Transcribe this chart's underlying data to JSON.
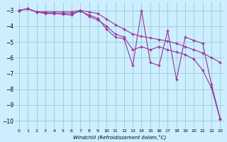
{
  "xlabel": "Windchill (Refroidissement éolien,°C)",
  "bg_color": "#cceeff",
  "line_color": "#993399",
  "grid_color": "#99cccc",
  "xlim": [
    -0.5,
    23.5
  ],
  "ylim": [
    -10.5,
    -2.5
  ],
  "yticks": [
    -10,
    -9,
    -8,
    -7,
    -6,
    -5,
    -4,
    -3
  ],
  "xticks": [
    0,
    1,
    2,
    3,
    4,
    5,
    6,
    7,
    8,
    9,
    10,
    11,
    12,
    13,
    14,
    15,
    16,
    17,
    18,
    19,
    20,
    21,
    22,
    23
  ],
  "line1_x": [
    0,
    1,
    2,
    3,
    4,
    5,
    6,
    7,
    8,
    9,
    10,
    11,
    12,
    13,
    14,
    15,
    16,
    17,
    18,
    19,
    20,
    21,
    22,
    23
  ],
  "line1_y": [
    -3.0,
    -2.9,
    -3.1,
    -3.1,
    -3.1,
    -3.1,
    -3.1,
    -3.0,
    -3.1,
    -3.2,
    -3.55,
    -3.9,
    -4.2,
    -4.5,
    -4.65,
    -4.75,
    -4.85,
    -4.95,
    -5.1,
    -5.3,
    -5.5,
    -5.7,
    -6.0,
    -6.3
  ],
  "line2_x": [
    0,
    1,
    2,
    3,
    4,
    5,
    6,
    7,
    8,
    9,
    10,
    11,
    12,
    13,
    14,
    15,
    16,
    17,
    18,
    19,
    20,
    21,
    22,
    23
  ],
  "line2_y": [
    -3.0,
    -2.9,
    -3.1,
    -3.2,
    -3.2,
    -3.2,
    -3.2,
    -3.05,
    -3.3,
    -3.5,
    -4.2,
    -4.7,
    -4.8,
    -6.5,
    -3.0,
    -6.3,
    -6.5,
    -4.3,
    -7.4,
    -4.7,
    -4.9,
    -5.1,
    -7.7,
    -9.85
  ],
  "line3_x": [
    0,
    1,
    2,
    3,
    4,
    5,
    6,
    7,
    8,
    9,
    10,
    11,
    12,
    13,
    14,
    15,
    16,
    17,
    18,
    19,
    20,
    21,
    22,
    23
  ],
  "line3_y": [
    -3.0,
    -2.9,
    -3.1,
    -3.15,
    -3.2,
    -3.25,
    -3.3,
    -3.0,
    -3.4,
    -3.6,
    -4.0,
    -4.5,
    -4.7,
    -5.5,
    -5.3,
    -5.5,
    -5.3,
    -5.5,
    -5.65,
    -5.8,
    -6.1,
    -6.8,
    -7.9,
    -9.9
  ]
}
